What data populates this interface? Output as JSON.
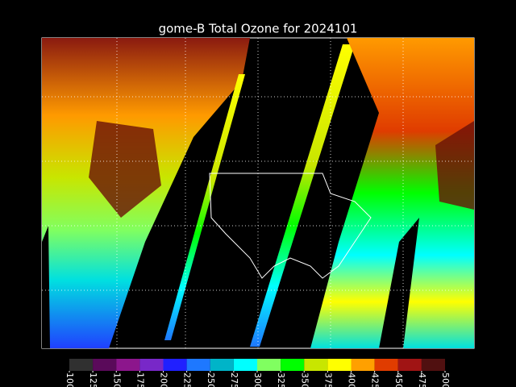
{
  "title": "gome-B Total Ozone for 2024101",
  "colorbar": {
    "ticks": [
      100,
      125,
      150,
      175,
      200,
      225,
      250,
      275,
      300,
      325,
      350,
      375,
      400,
      425,
      450,
      475,
      500
    ],
    "colors": [
      "#303030",
      "#5a0a5a",
      "#8c168c",
      "#7828c8",
      "#2020ff",
      "#1e78ff",
      "#00b4c8",
      "#00ffff",
      "#80ff60",
      "#00ff00",
      "#c8e600",
      "#ffff00",
      "#ffa000",
      "#e03c00",
      "#a01414",
      "#501010"
    ]
  }
}
